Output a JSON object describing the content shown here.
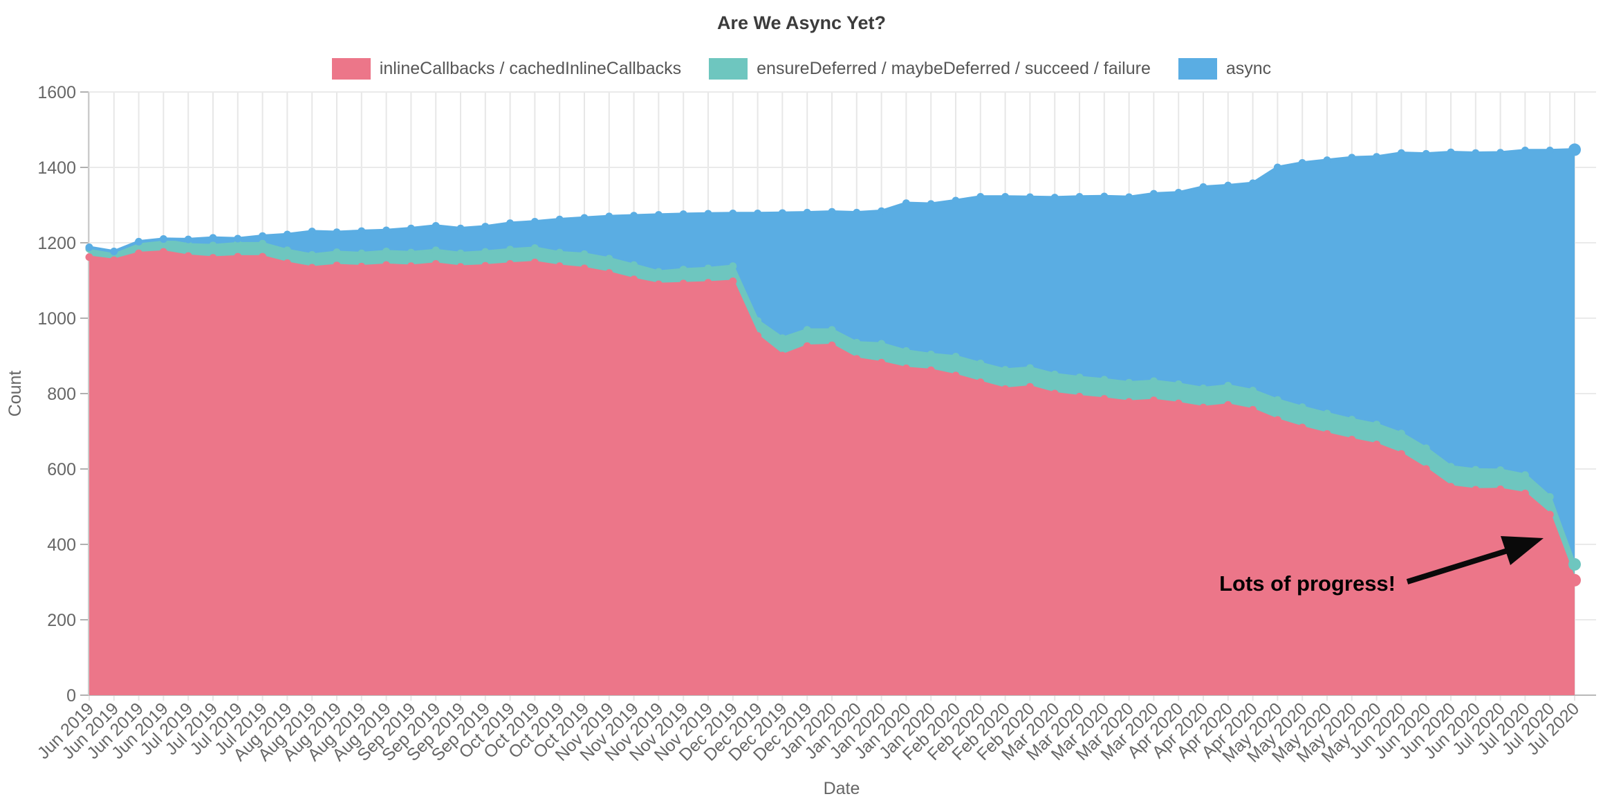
{
  "page": {
    "title": "Are We Async Yet?"
  },
  "legend": {
    "items": [
      {
        "label": "inlineCallbacks / cachedInlineCallbacks",
        "color": "#ec7689"
      },
      {
        "label": "ensureDeferred / maybeDeferred / succeed / failure",
        "color": "#6ec6bf"
      },
      {
        "label": "async",
        "color": "#5aade3"
      }
    ]
  },
  "axes": {
    "x_label": "Date",
    "y_label": "Count"
  },
  "annotation": {
    "text": "Lots of progress!"
  },
  "chart_data": {
    "type": "area",
    "stacked": true,
    "title": "Are We Async Yet?",
    "xlabel": "Date",
    "ylabel": "Count",
    "ylim": [
      0,
      1600
    ],
    "y_ticks": [
      0,
      200,
      400,
      600,
      800,
      1000,
      1200,
      1400,
      1600
    ],
    "grid": true,
    "legend_position": "top",
    "x": [
      "Jun 2019",
      "Jun 2019",
      "Jun 2019",
      "Jun 2019",
      "Jul 2019",
      "Jul 2019",
      "Jul 2019",
      "Jul 2019",
      "Aug 2019",
      "Aug 2019",
      "Aug 2019",
      "Aug 2019",
      "Aug 2019",
      "Sep 2019",
      "Sep 2019",
      "Sep 2019",
      "Sep 2019",
      "Oct 2019",
      "Oct 2019",
      "Oct 2019",
      "Oct 2019",
      "Nov 2019",
      "Nov 2019",
      "Nov 2019",
      "Nov 2019",
      "Nov 2019",
      "Dec 2019",
      "Dec 2019",
      "Dec 2019",
      "Dec 2019",
      "Jan 2020",
      "Jan 2020",
      "Jan 2020",
      "Jan 2020",
      "Jan 2020",
      "Feb 2020",
      "Feb 2020",
      "Feb 2020",
      "Feb 2020",
      "Mar 2020",
      "Mar 2020",
      "Mar 2020",
      "Mar 2020",
      "Mar 2020",
      "Apr 2020",
      "Apr 2020",
      "Apr 2020",
      "Apr 2020",
      "May 2020",
      "May 2020",
      "May 2020",
      "May 2020",
      "May 2020",
      "Jun 2020",
      "Jun 2020",
      "Jun 2020",
      "Jun 2020",
      "Jul 2020",
      "Jul 2020",
      "Jul 2020",
      "Jul 2020"
    ],
    "series": [
      {
        "name": "inlineCallbacks / cachedInlineCallbacks",
        "color": "#ec7689",
        "values": [
          1162,
          1154,
          1172,
          1176,
          1165,
          1160,
          1163,
          1163,
          1146,
          1134,
          1140,
          1137,
          1141,
          1138,
          1144,
          1136,
          1139,
          1144,
          1148,
          1138,
          1132,
          1120,
          1103,
          1090,
          1092,
          1094,
          1098,
          953,
          901,
          926,
          928,
          892,
          882,
          867,
          862,
          848,
          830,
          812,
          818,
          800,
          792,
          786,
          778,
          782,
          774,
          763,
          770,
          757,
          730,
          710,
          693,
          678,
          665,
          640,
          600,
          553,
          545,
          546,
          535,
          479,
          305
        ]
      },
      {
        "name": "ensureDeferred / maybeDeferred / succeed / failure",
        "color": "#6ec6bf",
        "values": [
          22,
          20,
          28,
          31,
          30,
          33,
          35,
          35,
          34,
          34,
          35,
          35,
          36,
          36,
          36,
          36,
          37,
          38,
          38,
          36,
          38,
          38,
          38,
          33,
          37,
          38,
          40,
          40,
          46,
          43,
          41,
          43,
          50,
          46,
          42,
          50,
          50,
          51,
          50,
          51,
          51,
          51,
          51,
          51,
          51,
          51,
          51,
          51,
          53,
          54,
          54,
          53,
          53,
          54,
          55,
          53,
          53,
          51,
          49,
          47,
          42
        ]
      },
      {
        "name": "async",
        "color": "#5aade3",
        "values": [
          4,
          3,
          3,
          3,
          14,
          20,
          13,
          20,
          42,
          62,
          53,
          59,
          56,
          64,
          65,
          66,
          67,
          70,
          70,
          88,
          96,
          112,
          131,
          151,
          147,
          145,
          140,
          285,
          332,
          311,
          313,
          345,
          352,
          392,
          399,
          414,
          442,
          459,
          453,
          469,
          479,
          486,
          492,
          497,
          508,
          534,
          531,
          550,
          617,
          648,
          672,
          695,
          710,
          744,
          781,
          834,
          840,
          842,
          861,
          919,
          1100
        ]
      }
    ],
    "annotations": [
      {
        "text": "Lots of progress!"
      }
    ]
  }
}
